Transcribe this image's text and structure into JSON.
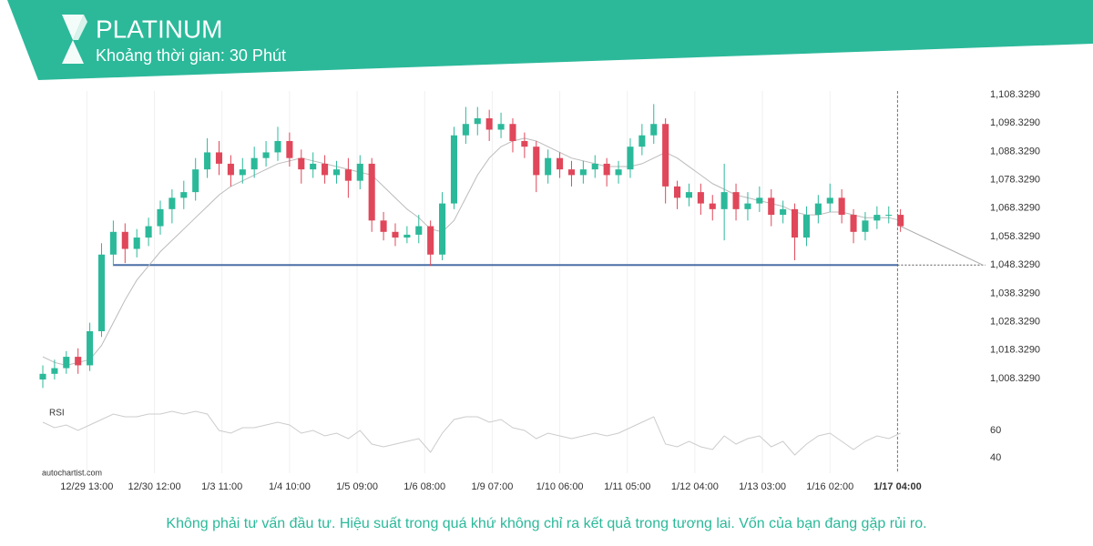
{
  "header": {
    "title": "PLATINUM",
    "subtitle": "Khoảng thời gian: 30 Phút"
  },
  "chart_data": {
    "type": "candlestick",
    "x": [
      0,
      8,
      16,
      24,
      32,
      40,
      48,
      56,
      64,
      72,
      80,
      88,
      96,
      104,
      112,
      120,
      128,
      136,
      144,
      152,
      160,
      168,
      176,
      184,
      192,
      200,
      208,
      216,
      224,
      232,
      240,
      248,
      256,
      264,
      272,
      280,
      288,
      296,
      304,
      312,
      320,
      328,
      336,
      344,
      352,
      360,
      368,
      376,
      384,
      392,
      400,
      408,
      416,
      424,
      432,
      440,
      448,
      456,
      464,
      472,
      480,
      488,
      496,
      504,
      512,
      520,
      528,
      536,
      544,
      552,
      560,
      568,
      576,
      584
    ],
    "open": [
      1008,
      1010,
      1012,
      1016,
      1013,
      1025,
      1052,
      1060,
      1054,
      1058,
      1062,
      1068,
      1072,
      1074,
      1082,
      1088,
      1084,
      1080,
      1082,
      1086,
      1088,
      1092,
      1086,
      1082,
      1084,
      1080,
      1082,
      1078,
      1084,
      1064,
      1060,
      1058,
      1059,
      1062,
      1052,
      1070,
      1094,
      1098,
      1100,
      1096,
      1098,
      1092,
      1090,
      1080,
      1086,
      1082,
      1080,
      1082,
      1084,
      1080,
      1082,
      1090,
      1094,
      1098,
      1076,
      1072,
      1074,
      1070,
      1068,
      1074,
      1068,
      1070,
      1072,
      1066,
      1068,
      1058,
      1066,
      1070,
      1072,
      1066,
      1060,
      1064,
      1066,
      1066
    ],
    "high": [
      1013,
      1015,
      1018,
      1019,
      1028,
      1056,
      1064,
      1063,
      1061,
      1065,
      1071,
      1075,
      1078,
      1086,
      1093,
      1092,
      1087,
      1086,
      1090,
      1092,
      1097,
      1095,
      1089,
      1088,
      1087,
      1085,
      1086,
      1087,
      1086,
      1067,
      1063,
      1062,
      1066,
      1064,
      1074,
      1097,
      1104,
      1104,
      1103,
      1102,
      1100,
      1095,
      1092,
      1089,
      1088,
      1085,
      1085,
      1087,
      1086,
      1085,
      1093,
      1098,
      1105,
      1100,
      1078,
      1077,
      1077,
      1073,
      1084,
      1077,
      1074,
      1076,
      1075,
      1071,
      1070,
      1069,
      1073,
      1077,
      1075,
      1068,
      1067,
      1069,
      1069,
      1068
    ],
    "low": [
      1005,
      1008,
      1010,
      1010,
      1011,
      1023,
      1048,
      1049,
      1051,
      1055,
      1059,
      1063,
      1068,
      1071,
      1079,
      1080,
      1076,
      1077,
      1079,
      1083,
      1085,
      1083,
      1077,
      1079,
      1077,
      1077,
      1072,
      1075,
      1060,
      1057,
      1055,
      1056,
      1056,
      1048,
      1050,
      1068,
      1091,
      1094,
      1092,
      1093,
      1088,
      1086,
      1074,
      1077,
      1079,
      1076,
      1077,
      1079,
      1076,
      1077,
      1079,
      1087,
      1091,
      1070,
      1068,
      1069,
      1066,
      1064,
      1057,
      1064,
      1064,
      1067,
      1062,
      1063,
      1050,
      1055,
      1063,
      1067,
      1063,
      1056,
      1057,
      1061,
      1063,
      1060
    ],
    "close": [
      1010,
      1012,
      1016,
      1013,
      1025,
      1052,
      1060,
      1054,
      1058,
      1062,
      1068,
      1072,
      1074,
      1082,
      1088,
      1084,
      1080,
      1082,
      1086,
      1088,
      1092,
      1086,
      1082,
      1084,
      1080,
      1082,
      1078,
      1084,
      1064,
      1060,
      1058,
      1059,
      1062,
      1052,
      1070,
      1094,
      1098,
      1100,
      1096,
      1098,
      1092,
      1090,
      1080,
      1086,
      1082,
      1080,
      1082,
      1084,
      1080,
      1082,
      1090,
      1094,
      1098,
      1076,
      1072,
      1074,
      1070,
      1068,
      1074,
      1068,
      1070,
      1072,
      1066,
      1068,
      1058,
      1066,
      1070,
      1072,
      1066,
      1060,
      1064,
      1066,
      1066,
      1062
    ],
    "moving_average": [
      1016,
      1014,
      1013,
      1014,
      1015,
      1020,
      1028,
      1036,
      1043,
      1048,
      1053,
      1057,
      1061,
      1065,
      1069,
      1073,
      1076,
      1078,
      1080,
      1082,
      1084,
      1085,
      1086,
      1085,
      1084,
      1083,
      1082,
      1081,
      1080,
      1076,
      1072,
      1068,
      1065,
      1061,
      1060,
      1064,
      1072,
      1080,
      1086,
      1090,
      1092,
      1093,
      1092,
      1090,
      1088,
      1086,
      1085,
      1084,
      1083,
      1083,
      1083,
      1084,
      1086,
      1088,
      1086,
      1083,
      1080,
      1077,
      1075,
      1073,
      1072,
      1071,
      1070,
      1069,
      1067,
      1066,
      1066,
      1067,
      1067,
      1066,
      1065,
      1065,
      1065,
      1064
    ],
    "up_color": "#2bb99a",
    "down_color": "#e0475a",
    "ma_color": "#bbbbbb",
    "support_level": 1048.329,
    "support_color": "#4a6fa5",
    "xlim": [
      0,
      645
    ],
    "ylim": [
      1000,
      1110
    ],
    "xticks": [
      {
        "value": 30,
        "label": "12/29 13:00"
      },
      {
        "value": 76,
        "label": "12/30 12:00"
      },
      {
        "value": 122,
        "label": "1/3 11:00"
      },
      {
        "value": 168,
        "label": "1/4 10:00"
      },
      {
        "value": 214,
        "label": "1/5 09:00"
      },
      {
        "value": 260,
        "label": "1/6 08:00"
      },
      {
        "value": 306,
        "label": "1/9 07:00"
      },
      {
        "value": 352,
        "label": "1/10 06:00"
      },
      {
        "value": 398,
        "label": "1/11 05:00"
      },
      {
        "value": 444,
        "label": "1/12 04:00"
      },
      {
        "value": 490,
        "label": "1/13 03:00"
      },
      {
        "value": 536,
        "label": "1/16 02:00"
      },
      {
        "value": 582,
        "label": "1/17 04:00"
      }
    ],
    "yticks": [
      {
        "value": 1008.329,
        "label": "1,008.3290"
      },
      {
        "value": 1018.329,
        "label": "1,018.3290"
      },
      {
        "value": 1028.329,
        "label": "1,028.3290"
      },
      {
        "value": 1038.329,
        "label": "1,038.3290"
      },
      {
        "value": 1048.329,
        "label": "1,048.3290"
      },
      {
        "value": 1058.329,
        "label": "1,058.3290"
      },
      {
        "value": 1068.329,
        "label": "1,068.3290"
      },
      {
        "value": 1078.329,
        "label": "1,078.3290"
      },
      {
        "value": 1088.329,
        "label": "1,088.3290"
      },
      {
        "value": 1098.329,
        "label": "1,098.3290"
      },
      {
        "value": 1108.329,
        "label": "1,108.3290"
      }
    ],
    "grid": true,
    "rsi": {
      "label": "RSI",
      "color": "#cccccc",
      "ylim": [
        30,
        80
      ],
      "yticks": [
        40,
        60
      ],
      "values": [
        66,
        62,
        64,
        60,
        64,
        68,
        72,
        70,
        70,
        72,
        72,
        74,
        72,
        74,
        72,
        60,
        58,
        62,
        62,
        64,
        66,
        64,
        58,
        60,
        56,
        58,
        54,
        60,
        50,
        48,
        50,
        52,
        54,
        44,
        58,
        68,
        70,
        70,
        66,
        68,
        62,
        60,
        54,
        58,
        56,
        54,
        56,
        58,
        56,
        58,
        62,
        66,
        70,
        50,
        48,
        52,
        48,
        46,
        56,
        50,
        54,
        56,
        48,
        52,
        42,
        50,
        56,
        58,
        52,
        46,
        52,
        56,
        54,
        58
      ]
    }
  },
  "source": "autochartist.com",
  "disclaimer": "Không phải tư vấn đầu tư. Hiệu suất trong quá khứ không chỉ ra kết quả trong tương lai. Vốn của bạn đang gặp rủi ro."
}
